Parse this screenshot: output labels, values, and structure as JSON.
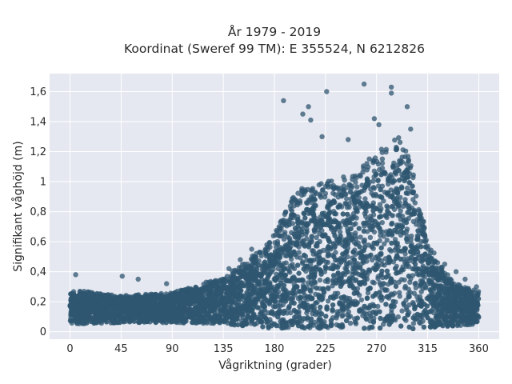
{
  "chart_data": {
    "type": "scatter",
    "title_line1": "År 1979 - 2019",
    "title_line2": "Koordinat (Sweref 99 TM): E 355524, N 6212826",
    "xlabel": "Vågriktning (grader)",
    "ylabel": "Signifikant våghöjd (m)",
    "xlim": [
      -18,
      378
    ],
    "ylim": [
      -0.05,
      1.72
    ],
    "xticks": [
      0,
      45,
      90,
      135,
      180,
      225,
      270,
      315,
      360
    ],
    "xtick_labels": [
      "0",
      "45",
      "90",
      "135",
      "180",
      "225",
      "270",
      "315",
      "360"
    ],
    "yticks": [
      0,
      0.2,
      0.4,
      0.6,
      0.8,
      1.0,
      1.2,
      1.4,
      1.6
    ],
    "ytick_labels": [
      "0",
      "0,2",
      "0,4",
      "0,6",
      "0,8",
      "1",
      "1,2",
      "1,4",
      "1,6"
    ],
    "grid": true,
    "marker_color": "#2f5670",
    "plot_bg": "#e5e8f0",
    "density_envelope": {
      "direction": [
        0,
        45,
        90,
        135,
        160,
        180,
        200,
        225,
        250,
        270,
        290,
        300,
        315,
        330,
        345,
        360
      ],
      "lower": [
        0.05,
        0.06,
        0.06,
        0.05,
        0.03,
        0.02,
        0.02,
        0.02,
        0.02,
        0.02,
        0.02,
        0.02,
        0.02,
        0.03,
        0.04,
        0.05
      ],
      "upper": [
        0.28,
        0.24,
        0.26,
        0.36,
        0.5,
        0.65,
        0.95,
        1.0,
        1.05,
        1.2,
        1.3,
        1.15,
        0.6,
        0.4,
        0.3,
        0.28
      ]
    },
    "outlier_points": [
      [
        188,
        1.54
      ],
      [
        210,
        1.5
      ],
      [
        226,
        1.6
      ],
      [
        259,
        1.65
      ],
      [
        283,
        1.63
      ],
      [
        283,
        1.59
      ],
      [
        297,
        1.5
      ],
      [
        268,
        1.42
      ],
      [
        205,
        1.45
      ],
      [
        212,
        1.41
      ],
      [
        272,
        1.38
      ],
      [
        300,
        1.35
      ],
      [
        222,
        1.3
      ],
      [
        245,
        1.28
      ],
      [
        160,
        0.55
      ],
      [
        150,
        0.48
      ],
      [
        140,
        0.42
      ],
      [
        5,
        0.38
      ],
      [
        46,
        0.37
      ],
      [
        60,
        0.35
      ],
      [
        85,
        0.32
      ],
      [
        330,
        0.45
      ],
      [
        340,
        0.4
      ],
      [
        348,
        0.35
      ],
      [
        358,
        0.3
      ],
      [
        120,
        0.33
      ]
    ]
  }
}
